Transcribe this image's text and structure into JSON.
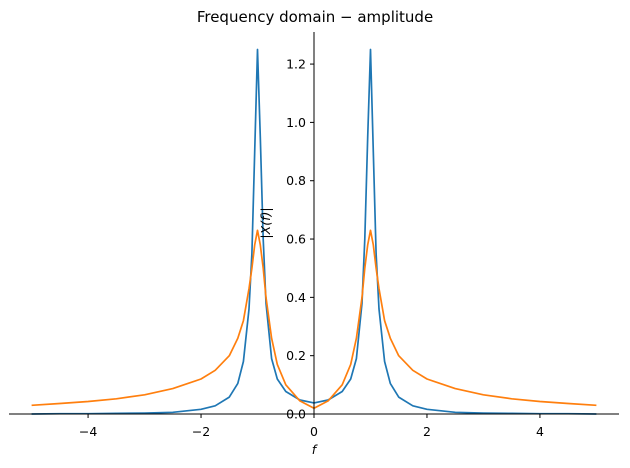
{
  "chart_data": {
    "type": "line",
    "title": "Frequency domain − amplitude",
    "xlabel": "f",
    "ylabel": "|X(f)|",
    "xlim": [
      -5.4,
      5.4
    ],
    "ylim": [
      0.0,
      1.31
    ],
    "xticks": [
      {
        "value": -4,
        "label": "−4"
      },
      {
        "value": -2,
        "label": "−2"
      },
      {
        "value": 0,
        "label": "0"
      },
      {
        "value": 2,
        "label": "2"
      },
      {
        "value": 4,
        "label": "4"
      }
    ],
    "yticks": [
      {
        "value": 0.0,
        "label": "0.0"
      },
      {
        "value": 0.2,
        "label": "0.2"
      },
      {
        "value": 0.4,
        "label": "0.4"
      },
      {
        "value": 0.6,
        "label": "0.6"
      },
      {
        "value": 0.8,
        "label": "0.8"
      },
      {
        "value": 1.0,
        "label": "1.0"
      },
      {
        "value": 1.2,
        "label": "1.2"
      }
    ],
    "grid": false,
    "spines": "centered",
    "series": [
      {
        "color": "#1f77b4",
        "x": [
          -5.0,
          -4.5,
          -4.0,
          -3.5,
          -3.0,
          -2.5,
          -2.0,
          -1.75,
          -1.5,
          -1.35,
          -1.25,
          -1.15,
          -1.1,
          -1.05,
          -1.0,
          -0.95,
          -0.9,
          -0.85,
          -0.75,
          -0.65,
          -0.5,
          -0.25,
          0.0,
          0.25,
          0.5,
          0.65,
          0.75,
          0.85,
          0.9,
          0.95,
          1.0,
          1.05,
          1.1,
          1.15,
          1.25,
          1.35,
          1.5,
          1.75,
          2.0,
          2.5,
          3.0,
          3.5,
          4.0,
          4.5,
          5.0
        ],
        "y": [
          0.0,
          0.001,
          0.001,
          0.002,
          0.003,
          0.006,
          0.016,
          0.028,
          0.058,
          0.105,
          0.18,
          0.36,
          0.55,
          0.9,
          1.25,
          0.95,
          0.6,
          0.38,
          0.19,
          0.12,
          0.077,
          0.048,
          0.038,
          0.048,
          0.077,
          0.12,
          0.19,
          0.38,
          0.6,
          0.95,
          1.25,
          0.9,
          0.55,
          0.36,
          0.18,
          0.105,
          0.058,
          0.028,
          0.016,
          0.006,
          0.003,
          0.002,
          0.001,
          0.001,
          0.0
        ]
      },
      {
        "color": "#ff7f0e",
        "x": [
          -5.0,
          -4.5,
          -4.0,
          -3.5,
          -3.0,
          -2.5,
          -2.0,
          -1.75,
          -1.5,
          -1.35,
          -1.25,
          -1.15,
          -1.1,
          -1.05,
          -1.0,
          -0.95,
          -0.9,
          -0.85,
          -0.75,
          -0.65,
          -0.5,
          -0.25,
          0.0,
          0.25,
          0.5,
          0.65,
          0.75,
          0.85,
          0.9,
          0.95,
          1.0,
          1.05,
          1.1,
          1.15,
          1.25,
          1.35,
          1.5,
          1.75,
          2.0,
          2.5,
          3.0,
          3.5,
          4.0,
          4.5,
          5.0
        ],
        "y": [
          0.03,
          0.036,
          0.043,
          0.052,
          0.066,
          0.087,
          0.12,
          0.15,
          0.2,
          0.26,
          0.32,
          0.43,
          0.5,
          0.58,
          0.63,
          0.58,
          0.5,
          0.4,
          0.26,
          0.17,
          0.1,
          0.045,
          0.02,
          0.045,
          0.1,
          0.17,
          0.26,
          0.4,
          0.5,
          0.58,
          0.63,
          0.58,
          0.5,
          0.43,
          0.32,
          0.26,
          0.2,
          0.15,
          0.12,
          0.087,
          0.066,
          0.052,
          0.043,
          0.036,
          0.03
        ]
      }
    ]
  }
}
